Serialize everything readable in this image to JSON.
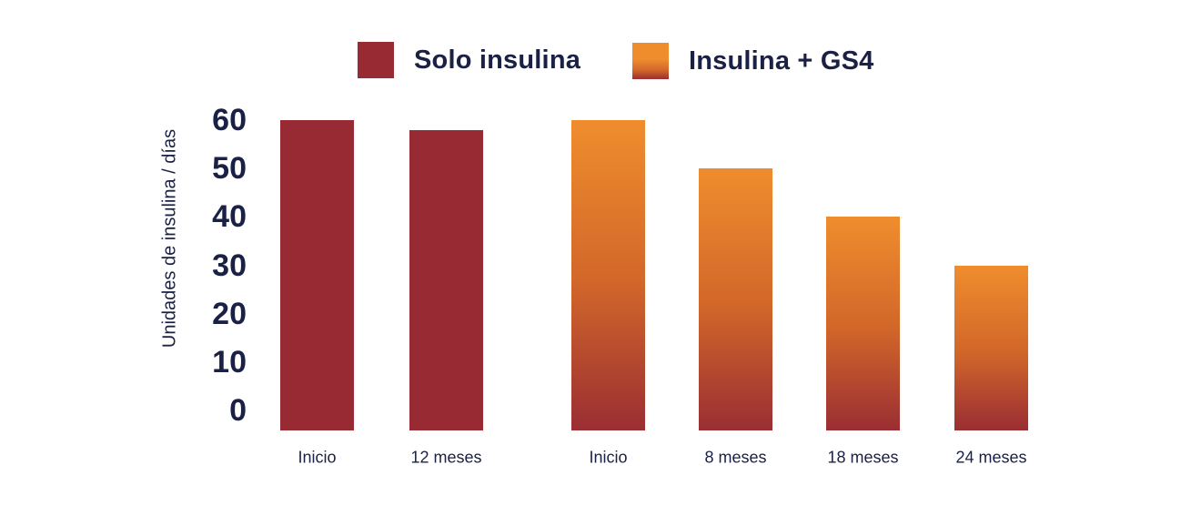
{
  "background": "#FFFFFF",
  "colors": {
    "navy_text": "#1B2145",
    "dark_red": "#972A33",
    "orange_top": "#EF8D2D",
    "orange_mid": "#D2672A",
    "gradient_bottom": "#9A2E33"
  },
  "legend": {
    "items": [
      {
        "label": "Solo insulina",
        "swatch": "solid-dark-red"
      },
      {
        "label": "Insulina + GS4",
        "swatch": "orange-red-gradient"
      }
    ]
  },
  "chart_data": {
    "type": "bar",
    "title": "",
    "xlabel": "",
    "ylabel": "Unidades de insulina / días",
    "ylim": [
      0,
      60
    ],
    "yticks": [
      0,
      10,
      20,
      30,
      40,
      50,
      60
    ],
    "grid": false,
    "legend_position": "top",
    "series": [
      {
        "name": "Solo insulina",
        "style": "solid",
        "color": "#972A33",
        "points": [
          {
            "label": "Inicio",
            "value": 60
          },
          {
            "label": "12 meses",
            "value": 58
          }
        ]
      },
      {
        "name": "Insulina + GS4",
        "style": "gradient",
        "gradient": [
          "#EF8D2D",
          "#D2672A",
          "#9A2E33"
        ],
        "points": [
          {
            "label": "Inicio",
            "value": 60
          },
          {
            "label": "8 meses",
            "value": 50
          },
          {
            "label": "18 meses",
            "value": 40
          },
          {
            "label": "24 meses",
            "value": 30
          }
        ]
      }
    ]
  }
}
